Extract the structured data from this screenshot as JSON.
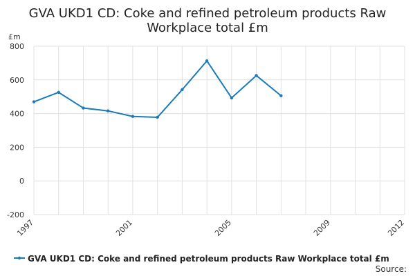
{
  "chart_data": {
    "type": "line",
    "title_line1": "GVA UKD1 CD: Coke and refined petroleum products Raw",
    "title_line2": "Workplace total £m",
    "unit_label": "£m",
    "ylim": [
      -200,
      800
    ],
    "yticks": [
      -200,
      0,
      200,
      400,
      600,
      800
    ],
    "xlim": [
      1997,
      2012
    ],
    "xticks": [
      1997,
      2001,
      2005,
      2009,
      2012
    ],
    "grid": true,
    "legend_position": "bottom",
    "series": [
      {
        "name": "GVA UKD1 CD: Coke and refined petroleum products Raw Workplace total £m",
        "color": "#1a7bb9",
        "x": [
          1997,
          1998,
          1999,
          2000,
          2001,
          2002,
          2003,
          2004,
          2005,
          2006,
          2007
        ],
        "values": [
          470,
          526,
          433,
          416,
          383,
          378,
          542,
          713,
          493,
          626,
          506
        ]
      }
    ],
    "source_label": "Source:"
  }
}
